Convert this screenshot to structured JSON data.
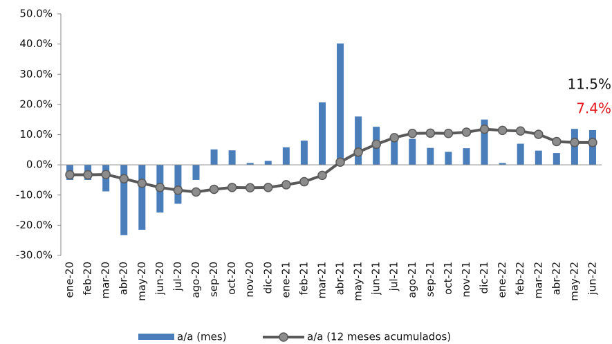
{
  "chart_data": {
    "type": "bar_line",
    "categories": [
      "ene-20",
      "feb-20",
      "mar-20",
      "abr-20",
      "may-20",
      "jun-20",
      "jul-20",
      "ago-20",
      "sep-20",
      "oct-20",
      "nov-20",
      "dic-20",
      "ene-21",
      "feb-21",
      "mar-21",
      "abr-21",
      "may-21",
      "jun-21",
      "jul-21",
      "ago-21",
      "sep-21",
      "oct-21",
      "nov-21",
      "dic-21",
      "ene-22",
      "feb-22",
      "mar-22",
      "abr-22",
      "may-22",
      "jun-22"
    ],
    "series": [
      {
        "name": "a/a (mes)",
        "type": "bar",
        "color": "#4a7ebb",
        "values": [
          -5.0,
          -5.0,
          -8.8,
          -23.3,
          -21.5,
          -15.8,
          -12.9,
          -5.0,
          5.1,
          4.8,
          0.6,
          1.3,
          5.8,
          8.0,
          20.7,
          40.2,
          16.0,
          12.6,
          9.4,
          8.6,
          5.6,
          4.3,
          5.5,
          15.0,
          0.6,
          7.0,
          4.7,
          3.9,
          11.9,
          11.5
        ]
      },
      {
        "name": "a/a (12 meses acumulados)",
        "type": "line",
        "color": "#595959",
        "marker_color": "#8c8c8c",
        "values": [
          -3.3,
          -3.3,
          -3.2,
          -4.6,
          -6.1,
          -7.5,
          -8.4,
          -9.0,
          -8.1,
          -7.5,
          -7.6,
          -7.5,
          -6.6,
          -5.6,
          -3.5,
          0.9,
          4.2,
          6.8,
          9.0,
          10.4,
          10.5,
          10.4,
          10.8,
          11.8,
          11.4,
          11.2,
          10.1,
          7.7,
          7.4,
          7.4
        ]
      }
    ],
    "ylim": [
      -30,
      50
    ],
    "yticks": [
      {
        "value": -30,
        "label": "-30.0%"
      },
      {
        "value": -20,
        "label": "-20.0%"
      },
      {
        "value": -10,
        "label": "-10.0%"
      },
      {
        "value": 0,
        "label": "0.0%"
      },
      {
        "value": 10,
        "label": "10.0%"
      },
      {
        "value": 20,
        "label": "20.0%"
      },
      {
        "value": 30,
        "label": "30.0%"
      },
      {
        "value": 40,
        "label": "40.0%"
      },
      {
        "value": 50,
        "label": "50.0%"
      }
    ],
    "annotations": [
      {
        "text": "11.5%",
        "color": "#111111"
      },
      {
        "text": "7.4%",
        "color": "#e31a1c"
      }
    ],
    "grid": false
  }
}
